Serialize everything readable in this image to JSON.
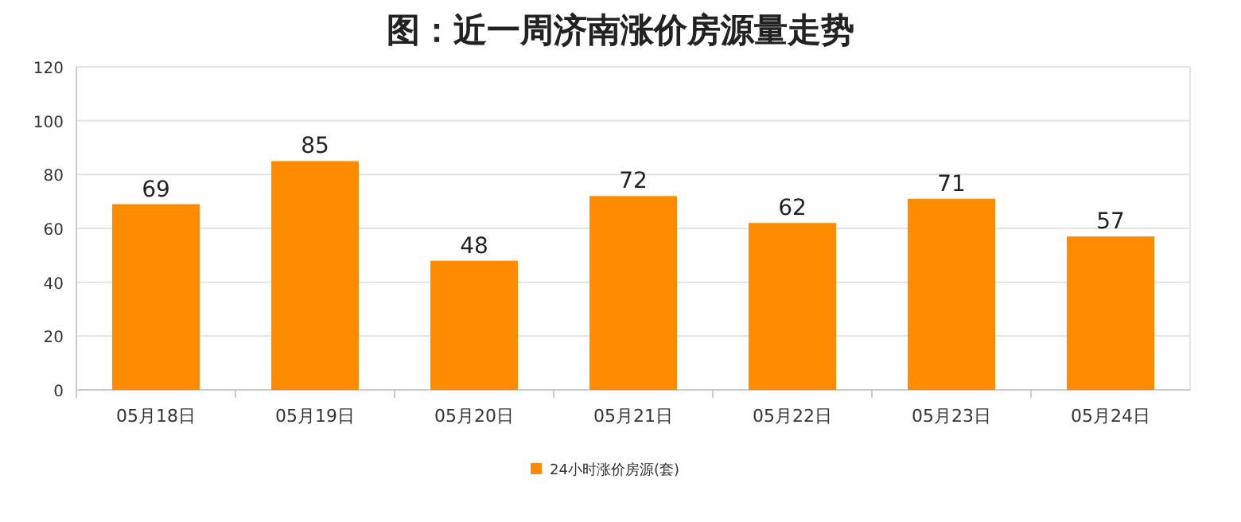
{
  "chart_data": {
    "type": "bar",
    "title": "图：近一周济南涨价房源量走势",
    "categories": [
      "05月18日",
      "05月19日",
      "05月20日",
      "05月21日",
      "05月22日",
      "05月23日",
      "05月24日"
    ],
    "series": [
      {
        "name": "24小时涨价房源(套)",
        "color": "#ff8c00",
        "values": [
          69,
          85,
          48,
          72,
          62,
          71,
          57
        ]
      }
    ],
    "ylim": [
      0,
      120
    ],
    "yticks": [
      0,
      20,
      40,
      60,
      80,
      100,
      120
    ],
    "grid": "y",
    "legend": "bottom",
    "data_labels": true
  }
}
